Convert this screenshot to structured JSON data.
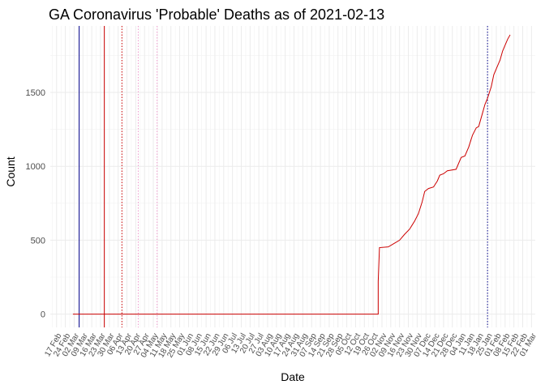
{
  "chart_data": {
    "type": "line",
    "title": "GA Coronavirus 'Probable' Deaths as of 2021-02-13",
    "xlabel": "Date",
    "ylabel": "Count",
    "grid": true,
    "legend": "none",
    "xlim": [
      "2020-02-12",
      "2021-03-04"
    ],
    "ylim": [
      -90,
      1950
    ],
    "y_ticks": [
      0,
      500,
      1000,
      1500
    ],
    "x_ticks": [
      {
        "date": "2020-02-17",
        "label": "17 Feb"
      },
      {
        "date": "2020-02-24",
        "label": "24 Feb"
      },
      {
        "date": "2020-03-02",
        "label": "02 Mar"
      },
      {
        "date": "2020-03-09",
        "label": "09 Mar"
      },
      {
        "date": "2020-03-16",
        "label": "16 Mar"
      },
      {
        "date": "2020-03-23",
        "label": "23 Mar"
      },
      {
        "date": "2020-03-30",
        "label": "30 Mar"
      },
      {
        "date": "2020-04-06",
        "label": "06 Apr"
      },
      {
        "date": "2020-04-13",
        "label": "13 Apr"
      },
      {
        "date": "2020-04-20",
        "label": "20 Apr"
      },
      {
        "date": "2020-04-27",
        "label": "27 Apr"
      },
      {
        "date": "2020-05-04",
        "label": "04 May"
      },
      {
        "date": "2020-05-11",
        "label": "11 May"
      },
      {
        "date": "2020-05-18",
        "label": "18 May"
      },
      {
        "date": "2020-05-25",
        "label": "25 May"
      },
      {
        "date": "2020-06-01",
        "label": "01 Jun"
      },
      {
        "date": "2020-06-08",
        "label": "08 Jun"
      },
      {
        "date": "2020-06-15",
        "label": "15 Jun"
      },
      {
        "date": "2020-06-22",
        "label": "22 Jun"
      },
      {
        "date": "2020-06-29",
        "label": "29 Jun"
      },
      {
        "date": "2020-07-06",
        "label": "06 Jul"
      },
      {
        "date": "2020-07-13",
        "label": "13 Jul"
      },
      {
        "date": "2020-07-20",
        "label": "20 Jul"
      },
      {
        "date": "2020-07-27",
        "label": "27 Jul"
      },
      {
        "date": "2020-08-03",
        "label": "03 Aug"
      },
      {
        "date": "2020-08-10",
        "label": "10 Aug"
      },
      {
        "date": "2020-08-17",
        "label": "17 Aug"
      },
      {
        "date": "2020-08-24",
        "label": "24 Aug"
      },
      {
        "date": "2020-08-31",
        "label": "31 Aug"
      },
      {
        "date": "2020-09-07",
        "label": "07 Sep"
      },
      {
        "date": "2020-09-14",
        "label": "14 Sep"
      },
      {
        "date": "2020-09-21",
        "label": "21 Sep"
      },
      {
        "date": "2020-09-28",
        "label": "28 Sep"
      },
      {
        "date": "2020-10-05",
        "label": "05 Oct"
      },
      {
        "date": "2020-10-12",
        "label": "12 Oct"
      },
      {
        "date": "2020-10-19",
        "label": "19 Oct"
      },
      {
        "date": "2020-10-26",
        "label": "26 Oct"
      },
      {
        "date": "2020-11-02",
        "label": "02 Nov"
      },
      {
        "date": "2020-11-09",
        "label": "09 Nov"
      },
      {
        "date": "2020-11-16",
        "label": "16 Nov"
      },
      {
        "date": "2020-11-23",
        "label": "23 Nov"
      },
      {
        "date": "2020-11-30",
        "label": "30 Nov"
      },
      {
        "date": "2020-12-07",
        "label": "07 Dec"
      },
      {
        "date": "2020-12-14",
        "label": "14 Dec"
      },
      {
        "date": "2020-12-21",
        "label": "21 Dec"
      },
      {
        "date": "2020-12-28",
        "label": "28 Dec"
      },
      {
        "date": "2021-01-04",
        "label": "04 Jan"
      },
      {
        "date": "2021-01-11",
        "label": "11 Jan"
      },
      {
        "date": "2021-01-18",
        "label": "18 Jan"
      },
      {
        "date": "2021-01-25",
        "label": "25 Jan"
      },
      {
        "date": "2021-02-01",
        "label": "01 Feb"
      },
      {
        "date": "2021-02-08",
        "label": "08 Feb"
      },
      {
        "date": "2021-02-15",
        "label": "15 Feb"
      },
      {
        "date": "2021-02-22",
        "label": "22 Feb"
      },
      {
        "date": "2021-03-01",
        "label": "01 Mar"
      }
    ],
    "series": [
      {
        "color": "#cc0000",
        "points": [
          [
            "2020-03-01",
            0
          ],
          [
            "2020-10-30",
            0
          ],
          [
            "2020-10-30",
            220
          ],
          [
            "2020-10-31",
            450
          ],
          [
            "2020-11-07",
            455
          ],
          [
            "2020-11-12",
            480
          ],
          [
            "2020-11-16",
            500
          ],
          [
            "2020-11-20",
            540
          ],
          [
            "2020-11-24",
            575
          ],
          [
            "2020-11-28",
            630
          ],
          [
            "2020-12-01",
            680
          ],
          [
            "2020-12-04",
            760
          ],
          [
            "2020-12-06",
            830
          ],
          [
            "2020-12-09",
            850
          ],
          [
            "2020-12-13",
            860
          ],
          [
            "2020-12-16",
            900
          ],
          [
            "2020-12-18",
            940
          ],
          [
            "2020-12-21",
            950
          ],
          [
            "2020-12-24",
            970
          ],
          [
            "2020-12-31",
            980
          ],
          [
            "2021-01-04",
            1060
          ],
          [
            "2021-01-07",
            1070
          ],
          [
            "2021-01-10",
            1130
          ],
          [
            "2021-01-13",
            1210
          ],
          [
            "2021-01-16",
            1260
          ],
          [
            "2021-01-18",
            1270
          ],
          [
            "2021-01-20",
            1330
          ],
          [
            "2021-01-23",
            1420
          ],
          [
            "2021-01-25",
            1460
          ],
          [
            "2021-01-28",
            1540
          ],
          [
            "2021-01-30",
            1620
          ],
          [
            "2021-02-02",
            1680
          ],
          [
            "2021-02-04",
            1720
          ],
          [
            "2021-02-06",
            1780
          ],
          [
            "2021-02-08",
            1820
          ],
          [
            "2021-02-10",
            1860
          ],
          [
            "2021-02-12",
            1890
          ]
        ]
      }
    ],
    "reference_lines": [
      {
        "date": "2020-03-06",
        "color": "#00008b",
        "style": "solid"
      },
      {
        "date": "2020-03-26",
        "color": "#cc0000",
        "style": "solid"
      },
      {
        "date": "2020-04-09",
        "color": "#cc0000",
        "style": "dotted"
      },
      {
        "date": "2020-04-22",
        "color": "#ee99cc",
        "style": "dotted"
      },
      {
        "date": "2020-05-07",
        "color": "#ee99cc",
        "style": "dotted"
      },
      {
        "date": "2021-01-25",
        "color": "#00008b",
        "style": "dotted"
      }
    ]
  }
}
